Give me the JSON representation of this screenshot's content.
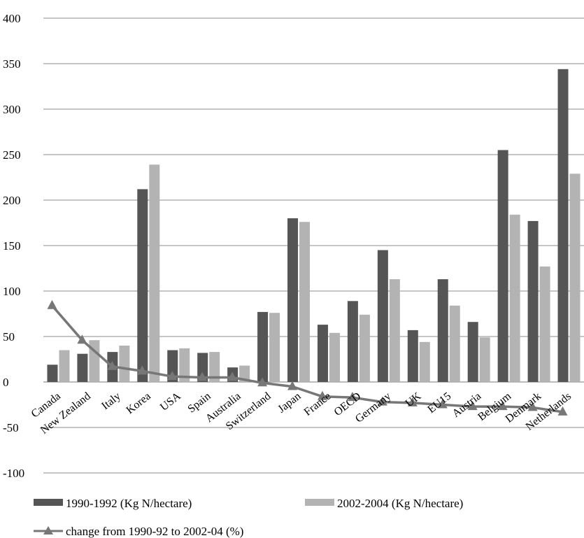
{
  "chart_data": {
    "type": "bar",
    "title": "",
    "xlabel": "",
    "ylabel": "",
    "ylim": [
      -100,
      400
    ],
    "yticks": [
      -100,
      -50,
      0,
      50,
      100,
      150,
      200,
      250,
      300,
      350,
      400
    ],
    "grid": true,
    "legend_position": "bottom",
    "categories": [
      "Canada",
      "New Zealand",
      "Italy",
      "Korea",
      "USA",
      "Spain",
      "Australia",
      "Switzerland",
      "Japan",
      "France",
      "OECD",
      "Germany",
      "UK",
      "EU15",
      "Austria",
      "Belgium",
      "Denmark",
      "Netherlands"
    ],
    "series": [
      {
        "name": "1990-1992 (Kg N/hectare)",
        "kind": "bar",
        "color": "#555555",
        "values": [
          19,
          31,
          33,
          212,
          35,
          32,
          16,
          77,
          180,
          63,
          89,
          145,
          57,
          113,
          66,
          255,
          177,
          344
        ]
      },
      {
        "name": "2002-2004 (Kg N/hectare)",
        "kind": "bar",
        "color": "#b3b3b3",
        "values": [
          35,
          46,
          40,
          239,
          37,
          33,
          18,
          76,
          176,
          54,
          74,
          113,
          44,
          84,
          49,
          184,
          127,
          229
        ]
      },
      {
        "name": "change from 1990-92 to 2002-04 (%)",
        "kind": "line",
        "marker": "triangle",
        "color": "#777777",
        "values": [
          84,
          46,
          17,
          12,
          6,
          5,
          5,
          -1,
          -5,
          -16,
          -17,
          -22,
          -23,
          -25,
          -27,
          -27,
          -28,
          -33
        ]
      }
    ]
  }
}
